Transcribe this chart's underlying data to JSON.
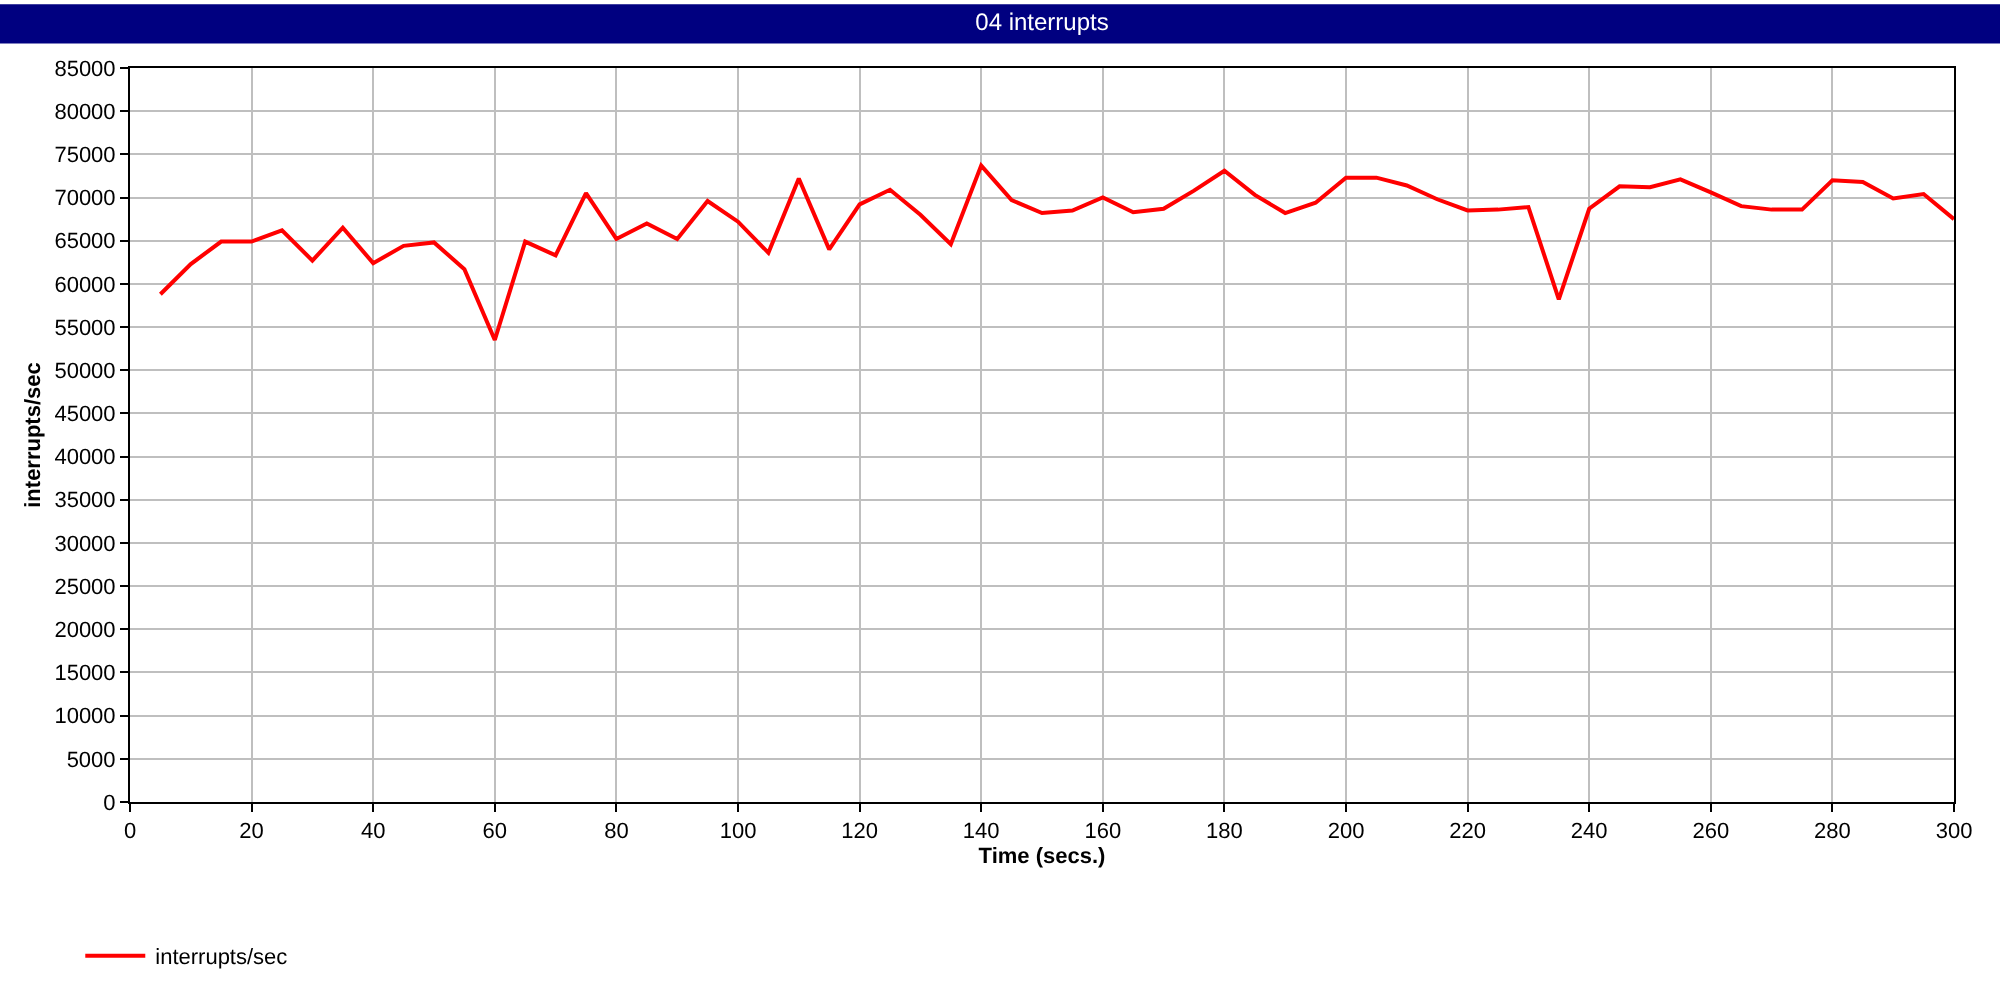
{
  "chart_data": {
    "type": "line",
    "title": "04 interrupts",
    "xlabel": "Time (secs.)",
    "ylabel": "interrupts/sec",
    "x": [
      5,
      10,
      15,
      20,
      25,
      30,
      35,
      40,
      45,
      50,
      55,
      60,
      65,
      70,
      75,
      80,
      85,
      90,
      95,
      100,
      105,
      110,
      115,
      120,
      125,
      130,
      135,
      140,
      145,
      150,
      155,
      160,
      165,
      170,
      175,
      180,
      185,
      190,
      195,
      200,
      205,
      210,
      215,
      220,
      225,
      230,
      235,
      240,
      245,
      250,
      255,
      260,
      265,
      270,
      275,
      280,
      285,
      290,
      295,
      300
    ],
    "series": [
      {
        "name": "interrupts/sec",
        "color": "#ff0000",
        "values": [
          58800,
          62300,
          64900,
          64900,
          66200,
          62700,
          66500,
          62400,
          64400,
          64800,
          61700,
          53500,
          64900,
          63300,
          70500,
          65200,
          67000,
          65200,
          69600,
          67200,
          63600,
          72200,
          64000,
          69200,
          70900,
          68000,
          64600,
          73700,
          69700,
          68200,
          68500,
          70000,
          68300,
          68700,
          70800,
          73100,
          70300,
          68200,
          69400,
          72300,
          72300,
          71400,
          69800,
          68500,
          68600,
          68900,
          58200,
          68700,
          71300,
          71200,
          72100,
          70600,
          69000,
          68600,
          68600,
          72000,
          71800,
          69900,
          70400,
          67500
        ]
      }
    ],
    "xlim": [
      0,
      300
    ],
    "xticks": [
      0,
      20,
      40,
      60,
      80,
      100,
      120,
      140,
      160,
      180,
      200,
      220,
      240,
      260,
      280,
      300
    ],
    "ylim": [
      0,
      85000
    ],
    "yticks": [
      0,
      5000,
      10000,
      15000,
      20000,
      25000,
      30000,
      35000,
      40000,
      45000,
      50000,
      55000,
      60000,
      65000,
      70000,
      75000,
      80000,
      85000
    ],
    "grid": true,
    "legend": "bottom left",
    "marker": "none",
    "line_style": "solid"
  }
}
